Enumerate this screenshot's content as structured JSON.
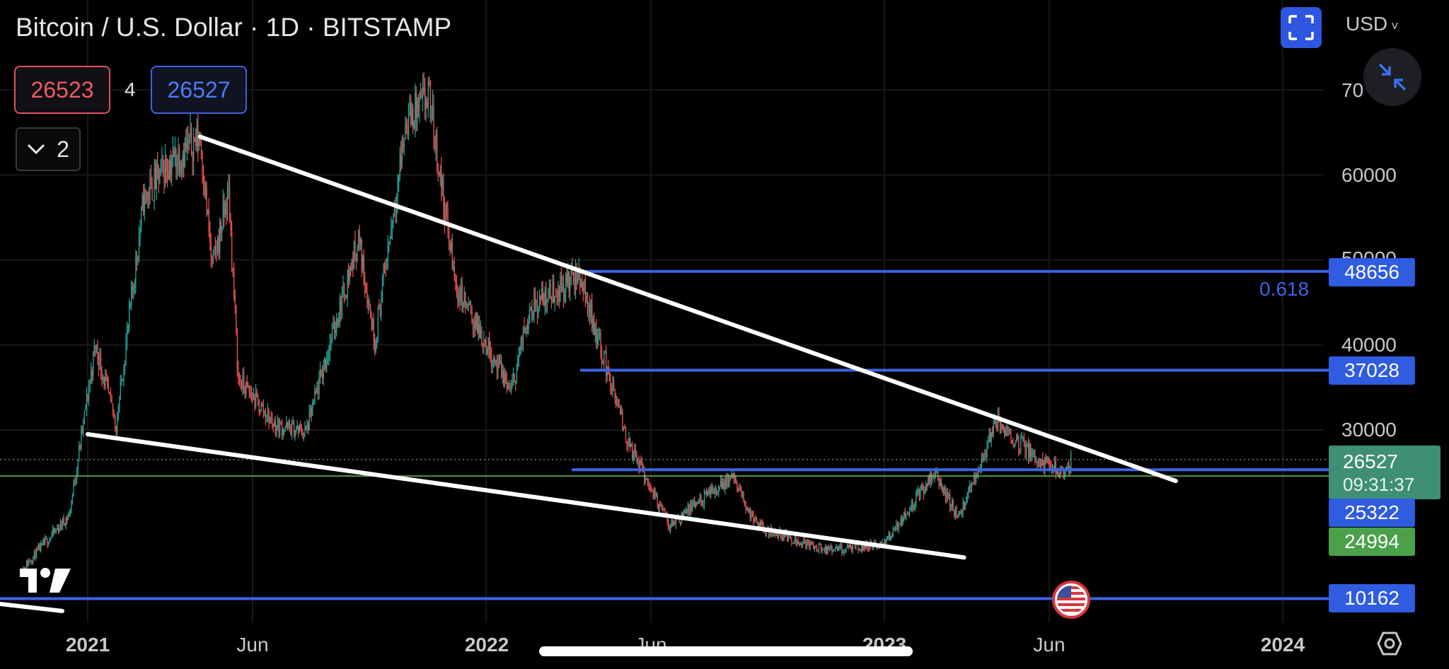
{
  "header": {
    "title": "Bitcoin / U.S. Dollar · 1D · BITSTAMP",
    "sell_price": "26523",
    "spread": "4",
    "buy_price": "26527",
    "collapse_count": "2",
    "currency": "USD"
  },
  "colors": {
    "up": "#26a69a",
    "down": "#ef5350",
    "trendline": "#ffffff",
    "level_line": "#3d63e8",
    "green_line": "#6fbf4a"
  },
  "icons": {
    "fullscreen": "fullscreen-icon",
    "shrink": "shrink-arrows-icon",
    "logo": "tradingview-logo",
    "settings": "settings-icon",
    "flag": "us-flag-event-icon"
  },
  "price_tag": {
    "price": "26527",
    "countdown": "09:31:37"
  },
  "horizontal_levels": [
    {
      "label": "48656",
      "value": 48656
    },
    {
      "label": "37028",
      "value": 37028
    },
    {
      "label": "25322",
      "value": 25322
    },
    {
      "label": "24994",
      "value": 24994
    },
    {
      "label": "10162",
      "value": 10162
    }
  ],
  "fib_label": "0.618",
  "chart_data": {
    "type": "candlestick",
    "title": "Bitcoin / U.S. Dollar · 1D · BITSTAMP",
    "y_ticks": [
      "70",
      "60000",
      "50000",
      "40000",
      "30000"
    ],
    "x_ticks": [
      {
        "label": "2021",
        "bold": true
      },
      {
        "label": "Jun",
        "bold": false
      },
      {
        "label": "2022",
        "bold": true
      },
      {
        "label": "Jun",
        "bold": false
      },
      {
        "label": "2023",
        "bold": true
      },
      {
        "label": "Jun",
        "bold": false
      },
      {
        "label": "2024",
        "bold": true
      }
    ],
    "price_path": [
      [
        "2020-11-01",
        13500
      ],
      [
        "2020-12-15",
        20000
      ],
      [
        "2021-01-08",
        40000
      ],
      [
        "2021-01-27",
        30500
      ],
      [
        "2021-02-21",
        57000
      ],
      [
        "2021-03-13",
        61000
      ],
      [
        "2021-04-14",
        64500
      ],
      [
        "2021-04-25",
        49000
      ],
      [
        "2021-05-10",
        58000
      ],
      [
        "2021-05-19",
        36000
      ],
      [
        "2021-06-22",
        30500
      ],
      [
        "2021-07-20",
        29800
      ],
      [
        "2021-09-06",
        52500
      ],
      [
        "2021-09-21",
        40500
      ],
      [
        "2021-10-20",
        66500
      ],
      [
        "2021-11-10",
        69000
      ],
      [
        "2021-12-04",
        47000
      ],
      [
        "2022-01-24",
        34500
      ],
      [
        "2022-02-10",
        44500
      ],
      [
        "2022-03-28",
        48200
      ],
      [
        "2022-05-11",
        28500
      ],
      [
        "2022-06-18",
        18800
      ],
      [
        "2022-08-14",
        24500
      ],
      [
        "2022-09-06",
        18700
      ],
      [
        "2022-11-09",
        15800
      ],
      [
        "2022-12-31",
        16500
      ],
      [
        "2023-02-16",
        25000
      ],
      [
        "2023-03-10",
        19600
      ],
      [
        "2023-04-14",
        31000
      ],
      [
        "2023-05-25",
        26200
      ],
      [
        "2023-06-15",
        25000
      ],
      [
        "2023-06-22",
        26527
      ]
    ],
    "trendlines": [
      {
        "from": [
          "2021-04-14",
          64500
        ],
        "to": [
          "2023-09-25",
          24000
        ]
      },
      {
        "from": [
          "2021-01-01",
          29500
        ],
        "to": [
          "2023-03-15",
          15000
        ]
      }
    ],
    "current_price": 26527,
    "green_level": 24994
  }
}
